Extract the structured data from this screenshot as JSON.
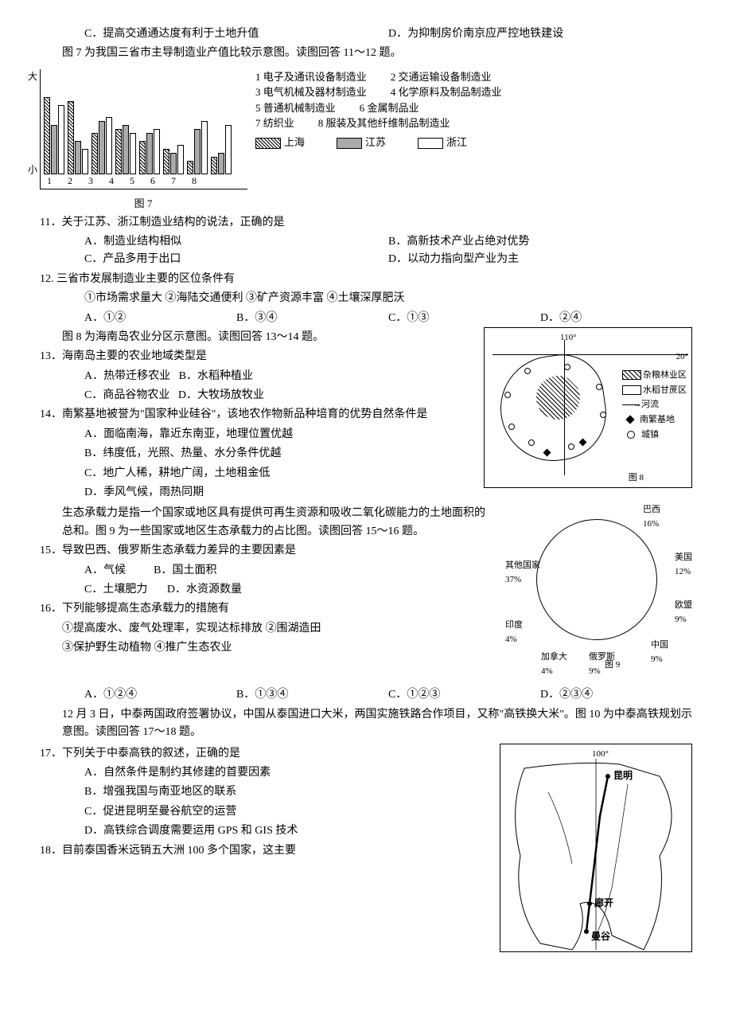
{
  "q_cd": {
    "c": "C．提高交通通达度有利于土地升值",
    "d": "D．为抑制房价南京应严控地铁建设"
  },
  "intro7": "图 7 为我国三省市主导制造业产值比较示意图。读图回答 11～12 题。",
  "fig7": {
    "y_top": "大",
    "y_bot": "小",
    "categories": [
      "1",
      "2",
      "3",
      "4",
      "5",
      "6",
      "7",
      "8"
    ],
    "legend_items": {
      "1": "1 电子及通讯设备制造业",
      "2": "2 交通运输设备制造业",
      "3": "3 电气机械及器材制造业",
      "4": "4 化学原料及制品制造业",
      "5": "5 普通机械制造业",
      "6": "6 金属制品业",
      "7": "7 纺织业",
      "8": "8 服装及其他纤维制品制造业"
    },
    "series": {
      "sh": "上海",
      "js": "江苏",
      "zj": "浙江"
    },
    "bars": {
      "1": {
        "sh": 95,
        "js": 60,
        "zj": 85
      },
      "2": {
        "sh": 90,
        "js": 40,
        "zj": 30
      },
      "3": {
        "sh": 50,
        "js": 65,
        "zj": 70
      },
      "4": {
        "sh": 55,
        "js": 60,
        "zj": 50
      },
      "5": {
        "sh": 40,
        "js": 50,
        "zj": 55
      },
      "6": {
        "sh": 30,
        "js": 25,
        "zj": 35
      },
      "7": {
        "sh": 15,
        "js": 55,
        "zj": 65
      },
      "8": {
        "sh": 20,
        "js": 25,
        "zj": 60
      }
    },
    "caption": "图 7"
  },
  "q11": {
    "stem": "11．关于江苏、浙江制造业结构的说法，正确的是",
    "a": "A．制造业结构相似",
    "b": "B．高新技术产业占绝对优势",
    "c": "C．产品多用于出口",
    "d": "D．以动力指向型产业为主"
  },
  "q12": {
    "stem": "12. 三省市发展制造业主要的区位条件有",
    "numbered": "①市场需求量大   ②海陆交通便利   ③矿产资源丰富   ④土壤深厚肥沃",
    "a": "A．①②",
    "b": "B．③④",
    "c": "C．①③",
    "d": "D．②④"
  },
  "intro8": "图 8 为海南岛农业分区示意图。读图回答 13～14 题。",
  "q13": {
    "stem": "13．海南岛主要的农业地域类型是",
    "a": "A．热带迁移农业",
    "b": "B．水稻种植业",
    "c": "C．商品谷物农业",
    "d": "D．大牧场放牧业"
  },
  "q14": {
    "stem": "14．南繁基地被誉为\"国家种业硅谷\"，该地农作物新品种培育的优势自然条件是",
    "a": "A．面临南海，靠近东南亚，地理位置优越",
    "b": "B．纬度低，光照、热量、水分条件优越",
    "c": "C．地广人稀，耕地广阔，土地租金低",
    "d": "D．季风气候，雨热同期"
  },
  "fig8": {
    "lon": "110°",
    "lat": "20°",
    "legend": {
      "zali": "杂粮林业区",
      "shuidao": "水稻甘蔗区",
      "river": "河流",
      "nanfan": "南繁基地",
      "town": "城镇"
    },
    "caption": "图 8"
  },
  "intro9": "生态承载力是指一个国家或地区具有提供可再生资源和吸收二氧化碳能力的土地面积的总和。图 9 为一些国家或地区生态承载力的占比图。读图回答 15～16 题。",
  "q15": {
    "stem": "15．导致巴西、俄罗斯生态承载力差异的主要因素是",
    "a": "A．气候",
    "b": "B．国土面积",
    "c": "C．土壤肥力",
    "d": "D．水资源数量"
  },
  "q16": {
    "stem": "16．下列能够提高生态承载力的措施有",
    "numbered1": "①提高废水、废气处理率，实现达标排放 ②围湖造田",
    "numbered2": "③保护野生动植物   ④推广生态农业",
    "a": "A．①②④",
    "b": "B．①③④",
    "c": "C．①②③",
    "d": "D．②③④"
  },
  "fig9": {
    "slices": {
      "brazil": {
        "label": "巴西",
        "pct": "16%"
      },
      "usa": {
        "label": "美国",
        "pct": "12%"
      },
      "eu": {
        "label": "欧盟",
        "pct": "9%"
      },
      "china": {
        "label": "中国",
        "pct": "9%"
      },
      "russia": {
        "label": "俄罗斯",
        "pct": "9%"
      },
      "canada": {
        "label": "加拿大",
        "pct": "4%"
      },
      "india": {
        "label": "印度",
        "pct": "4%"
      },
      "other": {
        "label": "其他国家",
        "pct": "37%"
      }
    },
    "caption": "图 9"
  },
  "intro10": "12 月 3 日，中泰两国政府签署协议，中国从泰国进口大米，两国实施铁路合作项目，又称\"高铁换大米\"。图 10 为中泰高铁规划示意图。读图回答 17～18 题。",
  "q17": {
    "stem": "17．下列关于中泰高铁的叙述，正确的是",
    "a": "A．自然条件是制约其修建的首要因素",
    "b": "B．增强我国与南亚地区的联系",
    "c": "C．促进昆明至曼谷航空的运营",
    "d": "D．高铁综合调度需要运用 GPS 和 GIS 技术"
  },
  "q18": {
    "stem": "18．目前泰国香米远销五大洲 100 多个国家，这主要"
  },
  "fig10": {
    "lon": "100°",
    "kunming": "昆明",
    "langkai": "廊开",
    "bangkok": "曼谷"
  }
}
